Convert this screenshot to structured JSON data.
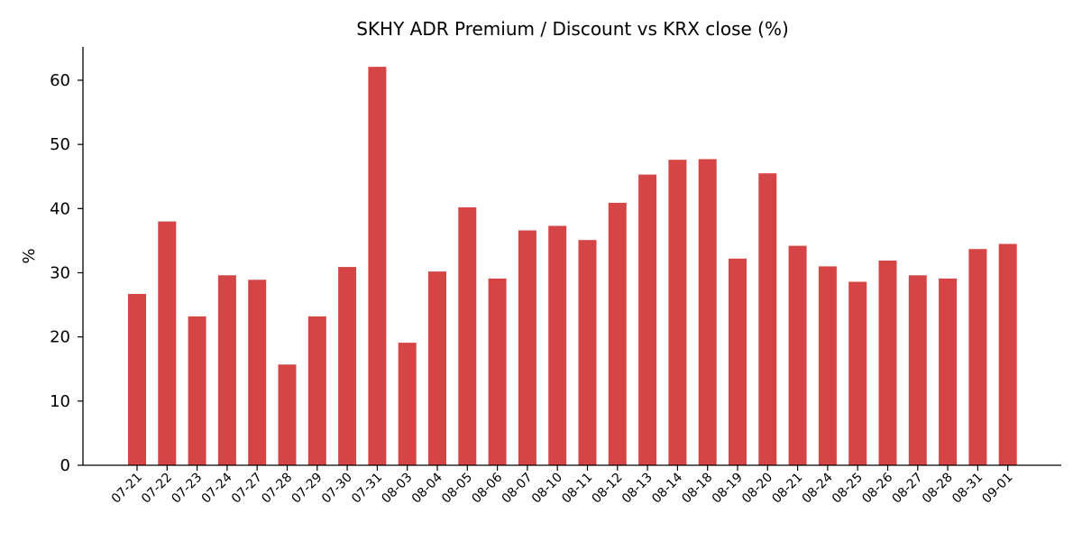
{
  "chart_data": {
    "type": "bar",
    "title": "SKHY ADR Premium / Discount vs KRX close (%)",
    "xlabel": "",
    "ylabel": "%",
    "ylim": [
      0,
      65
    ],
    "yticks": [
      0,
      10,
      20,
      30,
      40,
      50,
      60
    ],
    "grid": false,
    "legend": "none",
    "bar_color": "#d64545",
    "categories": [
      "07-21",
      "07-22",
      "07-23",
      "07-24",
      "07-27",
      "07-28",
      "07-29",
      "07-30",
      "07-31",
      "08-03",
      "08-04",
      "08-05",
      "08-06",
      "08-07",
      "08-10",
      "08-11",
      "08-12",
      "08-13",
      "08-14",
      "08-18",
      "08-19",
      "08-20",
      "08-21",
      "08-24",
      "08-25",
      "08-26",
      "08-27",
      "08-28",
      "08-31",
      "09-01"
    ],
    "values": [
      26.7,
      38.0,
      23.2,
      29.6,
      28.9,
      15.7,
      23.2,
      30.9,
      62.1,
      19.1,
      30.2,
      40.2,
      29.1,
      36.6,
      37.3,
      35.1,
      40.9,
      45.3,
      47.6,
      47.7,
      32.2,
      45.5,
      34.2,
      31.0,
      28.6,
      31.9,
      29.6,
      29.1,
      33.7,
      34.5
    ]
  }
}
